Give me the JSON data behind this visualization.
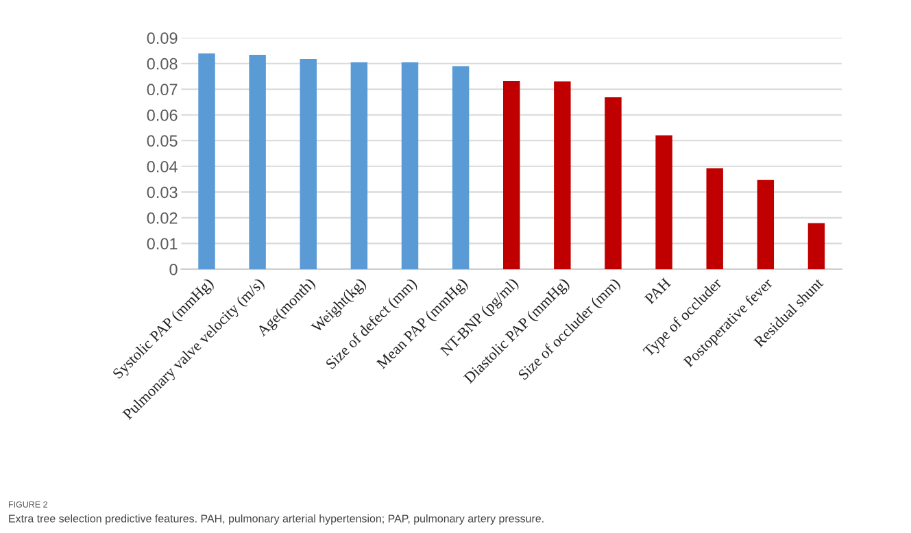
{
  "chart_data": {
    "type": "bar",
    "categories": [
      "Systolic PAP (mmHg)",
      "Pulmonary valve velocity (m/s)",
      "Age(month)",
      "Weight(kg)",
      "Size of defect (mm)",
      "Mean PAP (mmHg)",
      "NT-BNP (pg/ml)",
      "Diastolic PAP (mmHg)",
      "Size of occluder (mm)",
      "PAH",
      "Type of occluder",
      "Postoperative fever",
      "Residual shunt"
    ],
    "values": [
      0.0839,
      0.0834,
      0.0818,
      0.0805,
      0.0805,
      0.079,
      0.0733,
      0.0731,
      0.0669,
      0.0521,
      0.0393,
      0.0347,
      0.0179
    ],
    "colors": [
      "#5b9bd5",
      "#5b9bd5",
      "#5b9bd5",
      "#5b9bd5",
      "#5b9bd5",
      "#5b9bd5",
      "#c00000",
      "#c00000",
      "#c00000",
      "#c00000",
      "#c00000",
      "#c00000",
      "#c00000"
    ],
    "ylim": [
      0,
      0.09
    ],
    "yticks": [
      0,
      0.01,
      0.02,
      0.03,
      0.04,
      0.05,
      0.06,
      0.07,
      0.08,
      0.09
    ],
    "grid": "y",
    "legend": false,
    "annotations": [
      "FIGURE 2",
      "Extra tree selection predictive features. PAH, pulmonary arterial hypertension; PAP, pulmonary artery pressure."
    ]
  }
}
